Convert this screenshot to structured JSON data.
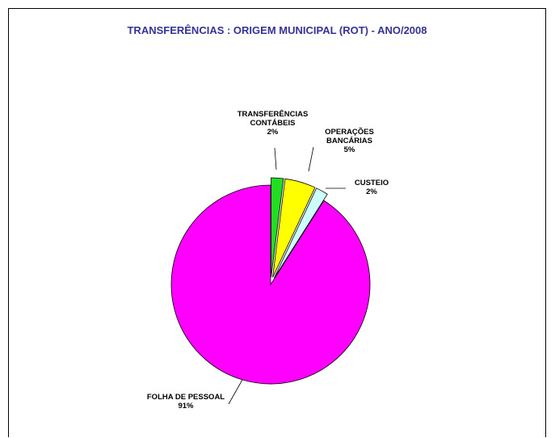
{
  "chart_data": {
    "type": "pie",
    "title": "TRANSFERÊNCIAS : ORIGEM MUNICIPAL (ROT) - ANO/2008",
    "categories": [
      "TRANSFERÊNCIAS CONTÁBEIS",
      "OPERAÇÕES BANCÁRIAS",
      "CUSTEIO",
      "FOLHA DE PESSOAL"
    ],
    "values": [
      2,
      5,
      2,
      91
    ],
    "value_labels": [
      "2%",
      "5%",
      "2%",
      "91%"
    ],
    "colors": [
      "#22dd22",
      "#ffff00",
      "#ccffff",
      "#ff00ff"
    ]
  }
}
